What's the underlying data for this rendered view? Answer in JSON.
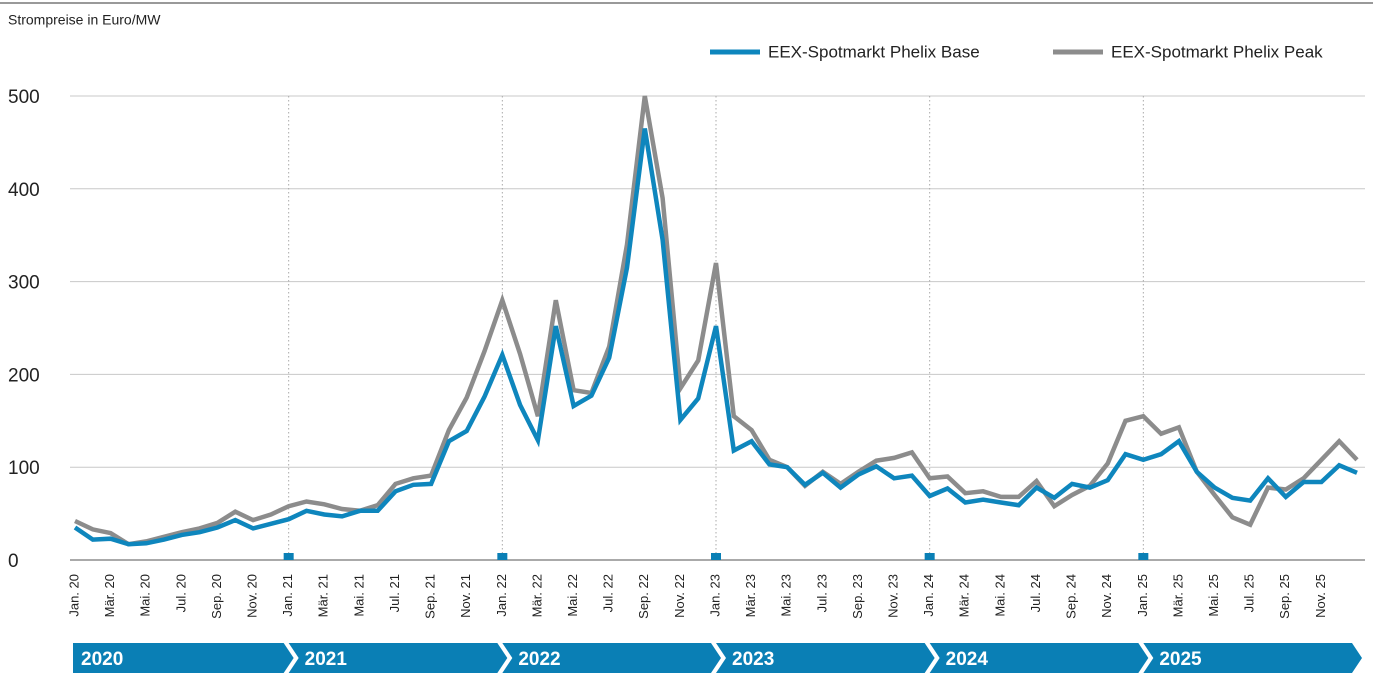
{
  "chart_data": {
    "type": "line",
    "subtitle": "Strompreise in Euro/MW",
    "categories": [
      "Jan. 20",
      null,
      "Mär. 20",
      null,
      "Mai. 20",
      null,
      "Jul. 20",
      null,
      "Sep. 20",
      null,
      "Nov. 20",
      null,
      "Jan. 21",
      null,
      "Mär. 21",
      null,
      "Mai. 21",
      null,
      "Jul. 21",
      null,
      "Sep. 21",
      null,
      "Nov. 21",
      null,
      "Jan. 22",
      null,
      "Mär. 22",
      null,
      "Mai. 22",
      null,
      "Jul. 22",
      null,
      "Sep. 22",
      null,
      "Nov. 22",
      null,
      "Jan. 23",
      null,
      "Mär. 23",
      null,
      "Mai. 23",
      null,
      "Jul. 23",
      null,
      "Sep. 23",
      null,
      "Nov. 23",
      null,
      "Jan. 24",
      null,
      "Mär. 24",
      null,
      "Mai. 24",
      null,
      "Jul. 24",
      null,
      "Sep. 24",
      null,
      "Nov. 24",
      null,
      "Jan. 25",
      null,
      "Mär. 25",
      null,
      "Mai. 25",
      null,
      "Jul. 25",
      null,
      "Sep. 25",
      null,
      "Nov. 25",
      null,
      null
    ],
    "series": [
      {
        "name": "EEX-Spotmarkt Phelix Base",
        "color": "#0e86bd",
        "values": [
          35,
          22,
          23,
          17,
          18,
          22,
          27,
          30,
          35,
          43,
          34,
          39,
          44,
          53,
          49,
          47,
          53,
          53,
          74,
          81,
          82,
          128,
          139,
          176,
          221,
          167,
          129,
          252,
          166,
          177,
          218,
          315,
          465,
          345,
          151,
          174,
          252,
          118,
          128,
          103,
          100,
          81,
          94,
          78,
          92,
          101,
          88,
          91,
          69,
          77,
          62,
          65,
          62,
          59,
          78,
          67,
          82,
          78,
          86,
          114,
          108,
          114,
          128,
          95,
          78,
          67,
          64,
          88,
          68,
          84,
          84,
          102,
          94
        ]
      },
      {
        "name": "EEX-Spotmarkt Phelix Peak",
        "color": "#8c8c8c",
        "values": [
          42,
          33,
          29,
          17,
          20,
          25,
          30,
          34,
          40,
          52,
          43,
          49,
          58,
          63,
          60,
          55,
          53,
          59,
          82,
          88,
          91,
          140,
          175,
          225,
          280,
          222,
          155,
          280,
          183,
          180,
          230,
          340,
          500,
          390,
          185,
          215,
          320,
          155,
          140,
          108,
          100,
          80,
          95,
          82,
          95,
          107,
          110,
          116,
          88,
          90,
          72,
          74,
          68,
          68,
          85,
          58,
          70,
          80,
          104,
          150,
          155,
          136,
          143,
          95,
          70,
          46,
          38,
          78,
          76,
          88,
          108,
          128,
          108
        ]
      }
    ],
    "ylim": [
      0,
      500
    ],
    "yticks": [
      0,
      100,
      200,
      300,
      400,
      500
    ],
    "grid": true,
    "legend": "top-right",
    "periods": [
      "2020",
      "2021",
      "2022",
      "2023",
      "2024",
      "2025"
    ],
    "period_color": "#0a7fb5"
  }
}
